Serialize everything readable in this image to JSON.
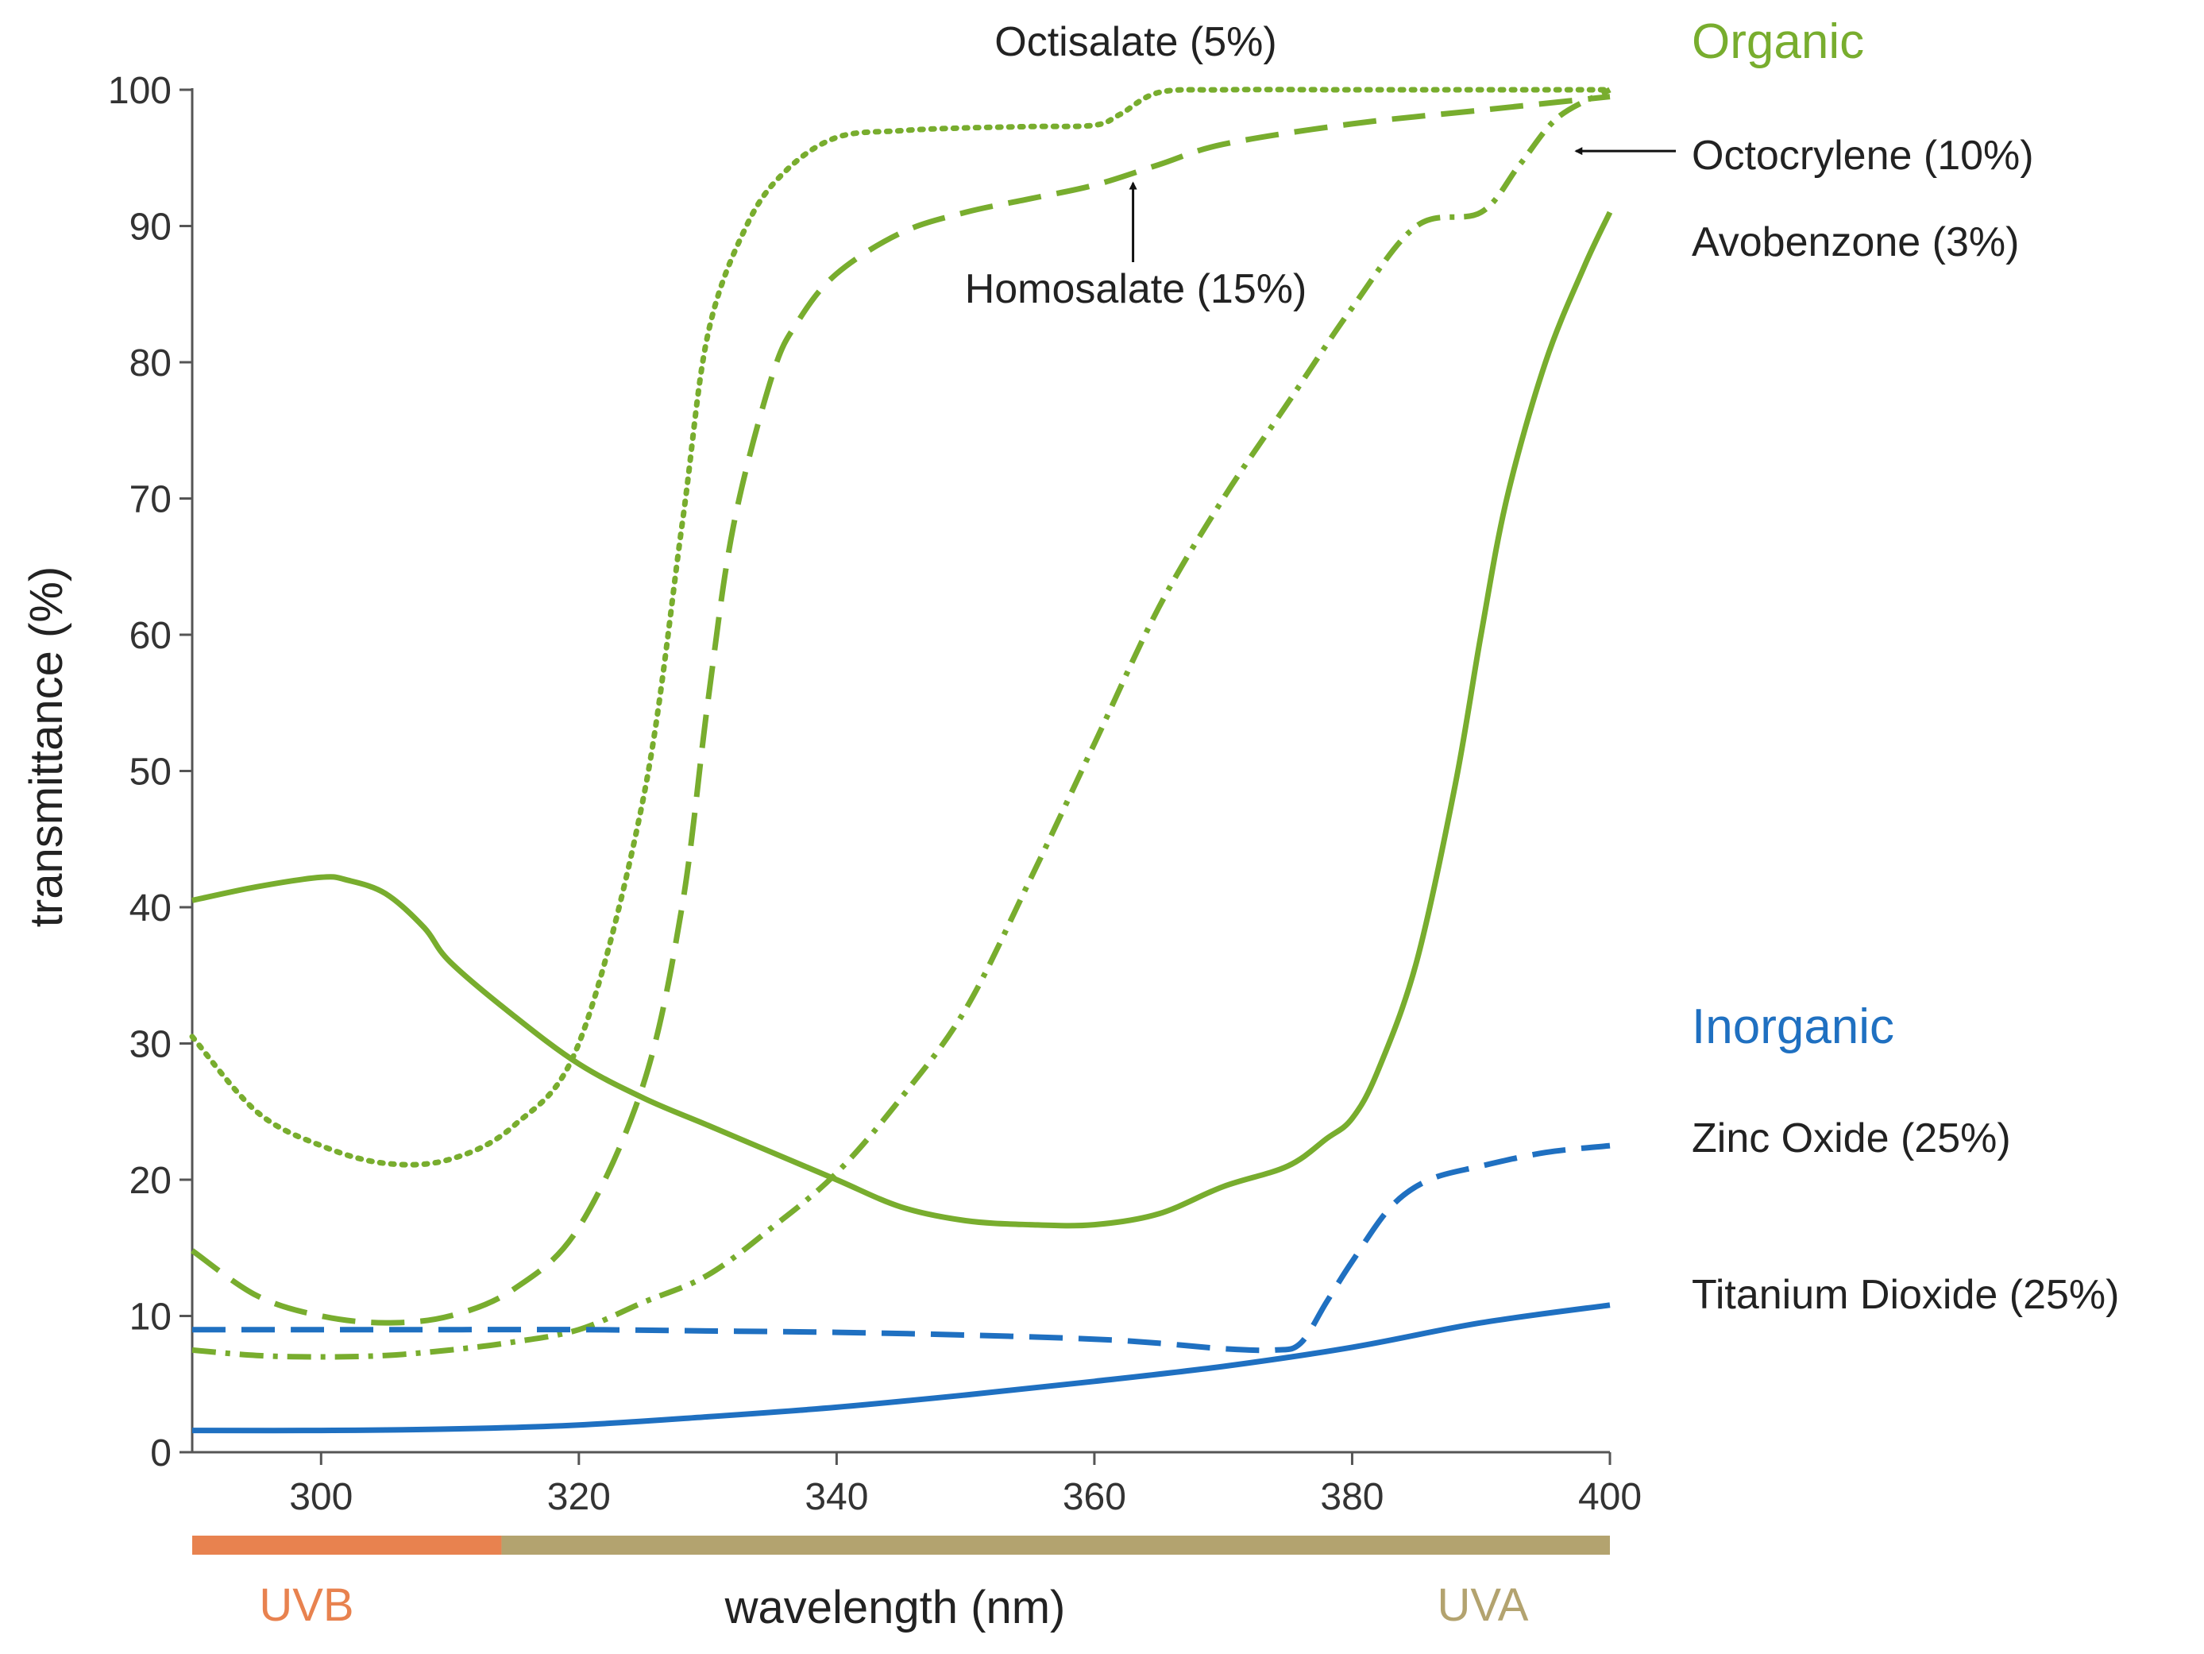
{
  "chart_data": {
    "type": "line",
    "xlabel": "wavelength (nm)",
    "ylabel": "transmittance (%)",
    "xlim": [
      290,
      400
    ],
    "ylim": [
      0,
      100
    ],
    "xticks": [
      300,
      320,
      340,
      360,
      380,
      400
    ],
    "yticks": [
      0,
      10,
      20,
      30,
      40,
      50,
      60,
      70,
      80,
      90,
      100
    ],
    "grid": false,
    "groups": [
      {
        "label": "Organic",
        "color": "#78ad2e"
      },
      {
        "label": "Inorganic",
        "color": "#1f70c1"
      }
    ],
    "bands": [
      {
        "label": "UVB",
        "from": 290,
        "to": 314,
        "color": "#e8824f"
      },
      {
        "label": "UVA",
        "from": 314,
        "to": 400,
        "color": "#b3a36f"
      }
    ],
    "series": [
      {
        "name": "Octisalate (5%)",
        "group": "Organic",
        "color": "#78ad2e",
        "dash": "dotted",
        "x": [
          290,
          295,
          300,
          305,
          310,
          315,
          320,
          325,
          328,
          330,
          333,
          336,
          340,
          345,
          350,
          355,
          360,
          362,
          365,
          370,
          380,
          390,
          400
        ],
        "y": [
          30.5,
          25,
          22.5,
          21.2,
          21.5,
          24,
          30,
          48,
          68,
          82,
          90,
          94,
          96.5,
          97,
          97.2,
          97.3,
          97.4,
          98.2,
          99.8,
          100,
          100,
          100,
          100
        ]
      },
      {
        "name": "Homosalate (15%)",
        "group": "Organic",
        "color": "#78ad2e",
        "dash": "dashed",
        "x": [
          290,
          295,
          300,
          305,
          310,
          315,
          320,
          325,
          328,
          330,
          332,
          335,
          337,
          340,
          345,
          350,
          355,
          360,
          365,
          370,
          380,
          390,
          400
        ],
        "y": [
          14.8,
          11.5,
          10,
          9.5,
          10,
          12,
          16.5,
          27,
          40,
          55,
          68,
          79,
          83,
          86.5,
          89.5,
          91,
          92,
          93,
          94.5,
          96,
          97.5,
          98.5,
          99.5
        ]
      },
      {
        "name": "Octocrylene (10%)",
        "group": "Organic",
        "color": "#78ad2e",
        "dash": "dashdot",
        "x": [
          290,
          295,
          300,
          305,
          310,
          315,
          320,
          325,
          330,
          335,
          340,
          345,
          350,
          355,
          360,
          365,
          370,
          375,
          380,
          385,
          390,
          393,
          396,
          400
        ],
        "y": [
          7.5,
          7.1,
          7.0,
          7.1,
          7.5,
          8.1,
          9.0,
          11,
          13,
          16.5,
          20.5,
          26,
          32.5,
          42,
          52,
          62,
          70,
          77,
          84,
          90,
          91,
          94.5,
          98,
          100
        ]
      },
      {
        "name": "Avobenzone (3%)",
        "group": "Organic",
        "color": "#78ad2e",
        "dash": "solid",
        "x": [
          290,
          295,
          300,
          302,
          305,
          308,
          310,
          315,
          320,
          325,
          330,
          335,
          340,
          345,
          350,
          355,
          360,
          365,
          370,
          375,
          378,
          380,
          382,
          385,
          388,
          390,
          392,
          395,
          398,
          400
        ],
        "y": [
          40.5,
          41.5,
          42.2,
          42.0,
          41,
          38.5,
          36,
          32,
          28.5,
          26,
          24,
          22,
          20,
          18,
          17,
          16.7,
          16.7,
          17.5,
          19.5,
          21,
          23,
          24.5,
          28,
          36,
          49,
          60,
          70,
          80,
          87,
          91
        ]
      },
      {
        "name": "Zinc Oxide (25%)",
        "group": "Inorganic",
        "color": "#1f70c1",
        "dash": "dashed",
        "x": [
          290,
          300,
          310,
          320,
          330,
          340,
          350,
          360,
          365,
          370,
          374,
          376,
          378,
          380,
          383,
          386,
          390,
          395,
          400
        ],
        "y": [
          9,
          9,
          9,
          9,
          8.9,
          8.8,
          8.6,
          8.3,
          8,
          7.6,
          7.5,
          8,
          11,
          14,
          18,
          20,
          21,
          22,
          22.5
        ]
      },
      {
        "name": "Titanium Dioxide (25%)",
        "group": "Inorganic",
        "color": "#1f70c1",
        "dash": "solid",
        "x": [
          290,
          300,
          310,
          320,
          330,
          340,
          350,
          360,
          370,
          380,
          390,
          400
        ],
        "y": [
          1.6,
          1.6,
          1.7,
          2.0,
          2.6,
          3.3,
          4.2,
          5.2,
          6.3,
          7.7,
          9.5,
          10.8
        ]
      }
    ],
    "annotations": [
      {
        "text": "Homosalate (15%)",
        "arrow_to": [
          363,
          93.5
        ]
      },
      {
        "text": "Octocrylene (10%)",
        "arrow_to": [
          397,
          95.5
        ]
      }
    ]
  }
}
